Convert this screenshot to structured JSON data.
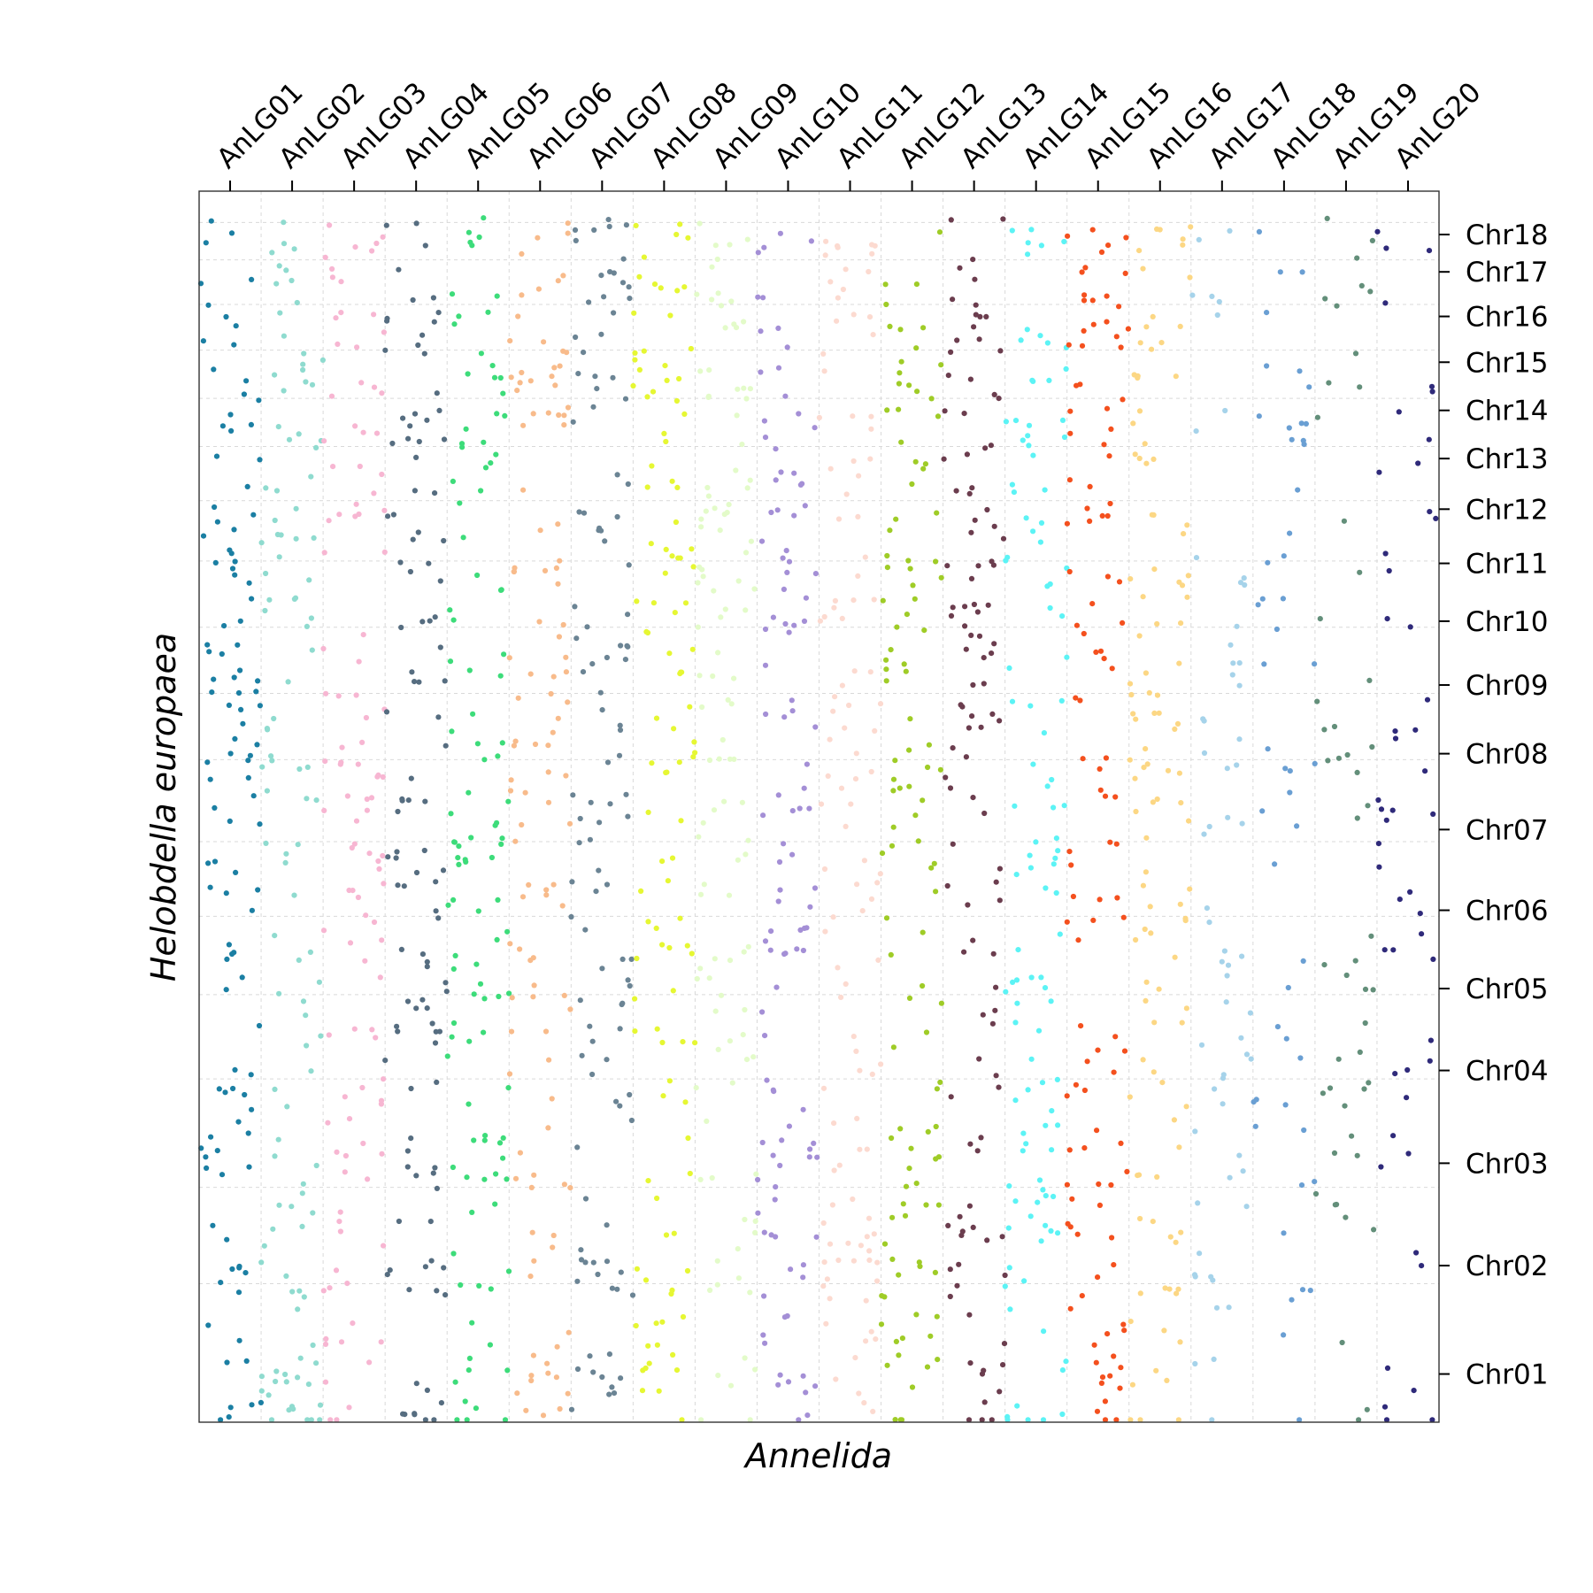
{
  "chart_data": {
    "type": "scatter",
    "xlabel": "Annelida",
    "ylabel": "Helobdella europaea",
    "x_categories": [
      "AnLG01",
      "AnLG02",
      "AnLG03",
      "AnLG04",
      "AnLG05",
      "AnLG06",
      "AnLG07",
      "AnLG08",
      "AnLG09",
      "AnLG10",
      "AnLG11",
      "AnLG12",
      "AnLG13",
      "AnLG14",
      "AnLG15",
      "AnLG16",
      "AnLG17",
      "AnLG18",
      "AnLG19",
      "AnLG20"
    ],
    "y_categories": [
      "Chr01",
      "Chr02",
      "Chr03",
      "Chr04",
      "Chr05",
      "Chr06",
      "Chr07",
      "Chr08",
      "Chr09",
      "Chr10",
      "Chr11",
      "Chr12",
      "Chr13",
      "Chr14",
      "Chr15",
      "Chr16",
      "Chr17",
      "Chr18"
    ],
    "x_block_bounds": [
      0,
      1,
      2,
      3,
      4,
      5,
      6,
      7,
      8,
      9,
      10,
      11,
      12,
      13,
      14,
      15,
      16,
      17,
      18,
      19,
      20
    ],
    "x_tick_positions": [
      0.5,
      1.5,
      2.5,
      3.5,
      4.5,
      5.5,
      6.5,
      7.5,
      8.5,
      9.5,
      10.5,
      11.5,
      12.5,
      13.5,
      14.5,
      15.5,
      16.5,
      17.5,
      18.5,
      19.5
    ],
    "y_block_bounds": [
      0,
      1.15,
      1.95,
      2.85,
      3.55,
      4.2,
      4.82,
      5.5,
      6.05,
      6.6,
      7.15,
      7.65,
      8.1,
      8.5,
      8.9,
      9.28,
      9.65,
      9.96,
      10.22
    ],
    "y_tick_positions": [
      0.4,
      1.3,
      2.15,
      2.92,
      3.6,
      4.25,
      4.92,
      5.55,
      6.12,
      6.65,
      7.13,
      7.58,
      8.0,
      8.4,
      8.8,
      9.18,
      9.55,
      9.86
    ],
    "xlim": [
      0,
      20
    ],
    "ylim": [
      0,
      10.22
    ],
    "grid": true,
    "legend": "none",
    "series_colors": [
      "#1b7fa3",
      "#8fdbcf",
      "#f7b6d2",
      "#566d80",
      "#3ddc7a",
      "#f8bb8b",
      "#6b8494",
      "#e6f733",
      "#e3fbc9",
      "#a48fd6",
      "#fcdad0",
      "#9fcc27",
      "#6b3d4e",
      "#5cf3f5",
      "#f4501e",
      "#fcd784",
      "#a6d3ea",
      "#6a9fd3",
      "#638f7a",
      "#2f2a7a"
    ],
    "point_count_per_category": 110
  }
}
